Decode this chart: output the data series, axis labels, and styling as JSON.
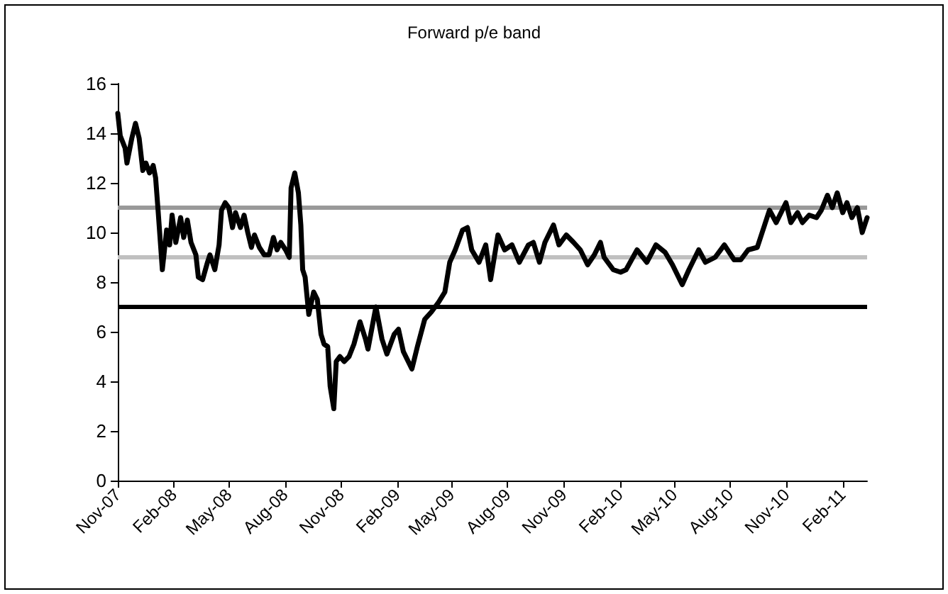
{
  "chart_data": {
    "type": "line",
    "title": "Forward p/e band",
    "x": [
      "2007-11-01",
      "2007-11-05",
      "2007-11-13",
      "2007-11-16",
      "2007-11-24",
      "2007-11-30",
      "2007-12-06",
      "2007-12-12",
      "2007-12-17",
      "2007-12-23",
      "2007-12-29",
      "2008-01-02",
      "2008-01-06",
      "2008-01-13",
      "2008-01-20",
      "2008-01-25",
      "2008-01-29",
      "2008-02-04",
      "2008-02-12",
      "2008-02-17",
      "2008-02-23",
      "2008-02-29",
      "2008-03-08",
      "2008-03-12",
      "2008-03-19",
      "2008-03-27",
      "2008-03-31",
      "2008-04-08",
      "2008-04-15",
      "2008-04-19",
      "2008-04-25",
      "2008-05-01",
      "2008-05-07",
      "2008-05-12",
      "2008-05-20",
      "2008-05-26",
      "2008-06-01",
      "2008-06-07",
      "2008-06-12",
      "2008-06-20",
      "2008-06-28",
      "2008-07-06",
      "2008-07-13",
      "2008-07-19",
      "2008-07-25",
      "2008-08-02",
      "2008-08-08",
      "2008-08-11",
      "2008-08-17",
      "2008-08-23",
      "2008-08-27",
      "2008-08-30",
      "2008-09-03",
      "2008-09-09",
      "2008-09-17",
      "2008-09-23",
      "2008-09-29",
      "2008-10-04",
      "2008-10-10",
      "2008-10-14",
      "2008-10-20",
      "2008-10-24",
      "2008-10-30",
      "2008-11-06",
      "2008-11-14",
      "2008-11-22",
      "2008-12-02",
      "2008-12-11",
      "2008-12-15",
      "2008-12-28",
      "2009-01-07",
      "2009-01-15",
      "2009-01-27",
      "2009-02-03",
      "2009-02-11",
      "2009-02-25",
      "2009-03-06",
      "2009-03-18",
      "2009-03-29",
      "2009-04-10",
      "2009-04-20",
      "2009-04-28",
      "2009-05-07",
      "2009-05-19",
      "2009-05-27",
      "2009-06-03",
      "2009-06-15",
      "2009-06-26",
      "2009-07-04",
      "2009-07-16",
      "2009-07-27",
      "2009-08-08",
      "2009-08-20",
      "2009-09-04",
      "2009-09-12",
      "2009-09-22",
      "2009-10-01",
      "2009-10-15",
      "2009-10-24",
      "2009-11-05",
      "2009-11-17",
      "2009-11-28",
      "2009-12-10",
      "2009-12-21",
      "2009-12-31",
      "2010-01-06",
      "2010-01-21",
      "2010-02-02",
      "2010-02-11",
      "2010-03-01",
      "2010-03-17",
      "2010-04-01",
      "2010-04-16",
      "2010-04-28",
      "2010-05-14",
      "2010-05-25",
      "2010-06-10",
      "2010-06-21",
      "2010-07-07",
      "2010-07-22",
      "2010-08-07",
      "2010-08-18",
      "2010-08-30",
      "2010-09-14",
      "2010-09-26",
      "2010-10-04",
      "2010-10-15",
      "2010-10-31",
      "2010-11-08",
      "2010-11-19",
      "2010-11-27",
      "2010-12-08",
      "2010-12-20",
      "2010-12-28",
      "2011-01-07",
      "2011-01-15",
      "2011-01-23",
      "2011-02-01",
      "2011-02-08",
      "2011-02-16",
      "2011-02-25",
      "2011-03-05",
      "2011-03-13"
    ],
    "values": [
      14.8,
      13.9,
      13.4,
      12.8,
      13.8,
      14.4,
      13.8,
      12.5,
      12.8,
      12.4,
      12.7,
      12.2,
      10.9,
      8.5,
      10.1,
      9.5,
      10.7,
      9.6,
      10.6,
      9.8,
      10.5,
      9.6,
      9.1,
      8.2,
      8.1,
      8.8,
      9.1,
      8.5,
      9.5,
      10.9,
      11.2,
      11.0,
      10.2,
      10.8,
      10.2,
      10.7,
      10.0,
      9.4,
      9.9,
      9.4,
      9.1,
      9.1,
      9.8,
      9.3,
      9.6,
      9.3,
      9.0,
      11.8,
      12.4,
      11.6,
      10.3,
      8.5,
      8.2,
      6.7,
      7.6,
      7.3,
      5.9,
      5.5,
      5.4,
      3.8,
      2.9,
      4.8,
      5.0,
      4.8,
      5.0,
      5.5,
      6.4,
      5.7,
      5.3,
      7.0,
      5.7,
      5.1,
      5.9,
      6.1,
      5.2,
      4.5,
      5.4,
      6.5,
      6.8,
      7.2,
      7.6,
      8.8,
      9.3,
      10.1,
      10.2,
      9.3,
      8.8,
      9.5,
      8.1,
      9.9,
      9.3,
      9.5,
      8.8,
      9.5,
      9.6,
      8.8,
      9.6,
      10.3,
      9.5,
      9.9,
      9.6,
      9.3,
      8.7,
      9.1,
      9.6,
      9.0,
      8.5,
      8.4,
      8.5,
      9.3,
      8.8,
      9.5,
      9.2,
      8.7,
      7.9,
      8.5,
      9.3,
      8.8,
      9.0,
      9.5,
      8.9,
      8.9,
      9.3,
      9.4,
      10.3,
      10.9,
      10.4,
      11.2,
      10.4,
      10.8,
      10.4,
      10.7,
      10.6,
      10.9,
      11.5,
      11.0,
      11.6,
      10.8,
      11.2,
      10.6,
      11.0,
      10.0,
      10.6
    ],
    "color": "#000000",
    "xlim": [
      "2007-11-01",
      "2011-03-13"
    ],
    "xticks": [
      {
        "value": "2007-11",
        "label": "Nov-07"
      },
      {
        "value": "2008-02",
        "label": "Feb-08"
      },
      {
        "value": "2008-05",
        "label": "May-08"
      },
      {
        "value": "2008-08",
        "label": "Aug-08"
      },
      {
        "value": "2008-11",
        "label": "Nov-08"
      },
      {
        "value": "2009-02",
        "label": "Feb-09"
      },
      {
        "value": "2009-05",
        "label": "May-09"
      },
      {
        "value": "2009-08",
        "label": "Aug-09"
      },
      {
        "value": "2009-11",
        "label": "Nov-09"
      },
      {
        "value": "2010-02",
        "label": "Feb-10"
      },
      {
        "value": "2010-05",
        "label": "May-10"
      },
      {
        "value": "2010-08",
        "label": "Aug-10"
      },
      {
        "value": "2010-11",
        "label": "Nov-10"
      },
      {
        "value": "2011-02",
        "label": "Feb-11"
      }
    ],
    "ylim": [
      0,
      16
    ],
    "yticks": [
      0,
      2,
      4,
      6,
      8,
      10,
      12,
      14,
      16
    ],
    "ref_lines": [
      {
        "axis": "y",
        "value": 11,
        "color": "#999999"
      },
      {
        "axis": "y",
        "value": 9,
        "color": "#c0c0c0"
      },
      {
        "axis": "y",
        "value": 7,
        "color": "#000000"
      }
    ],
    "grid": false,
    "marker": "none",
    "line_style": "solid"
  }
}
